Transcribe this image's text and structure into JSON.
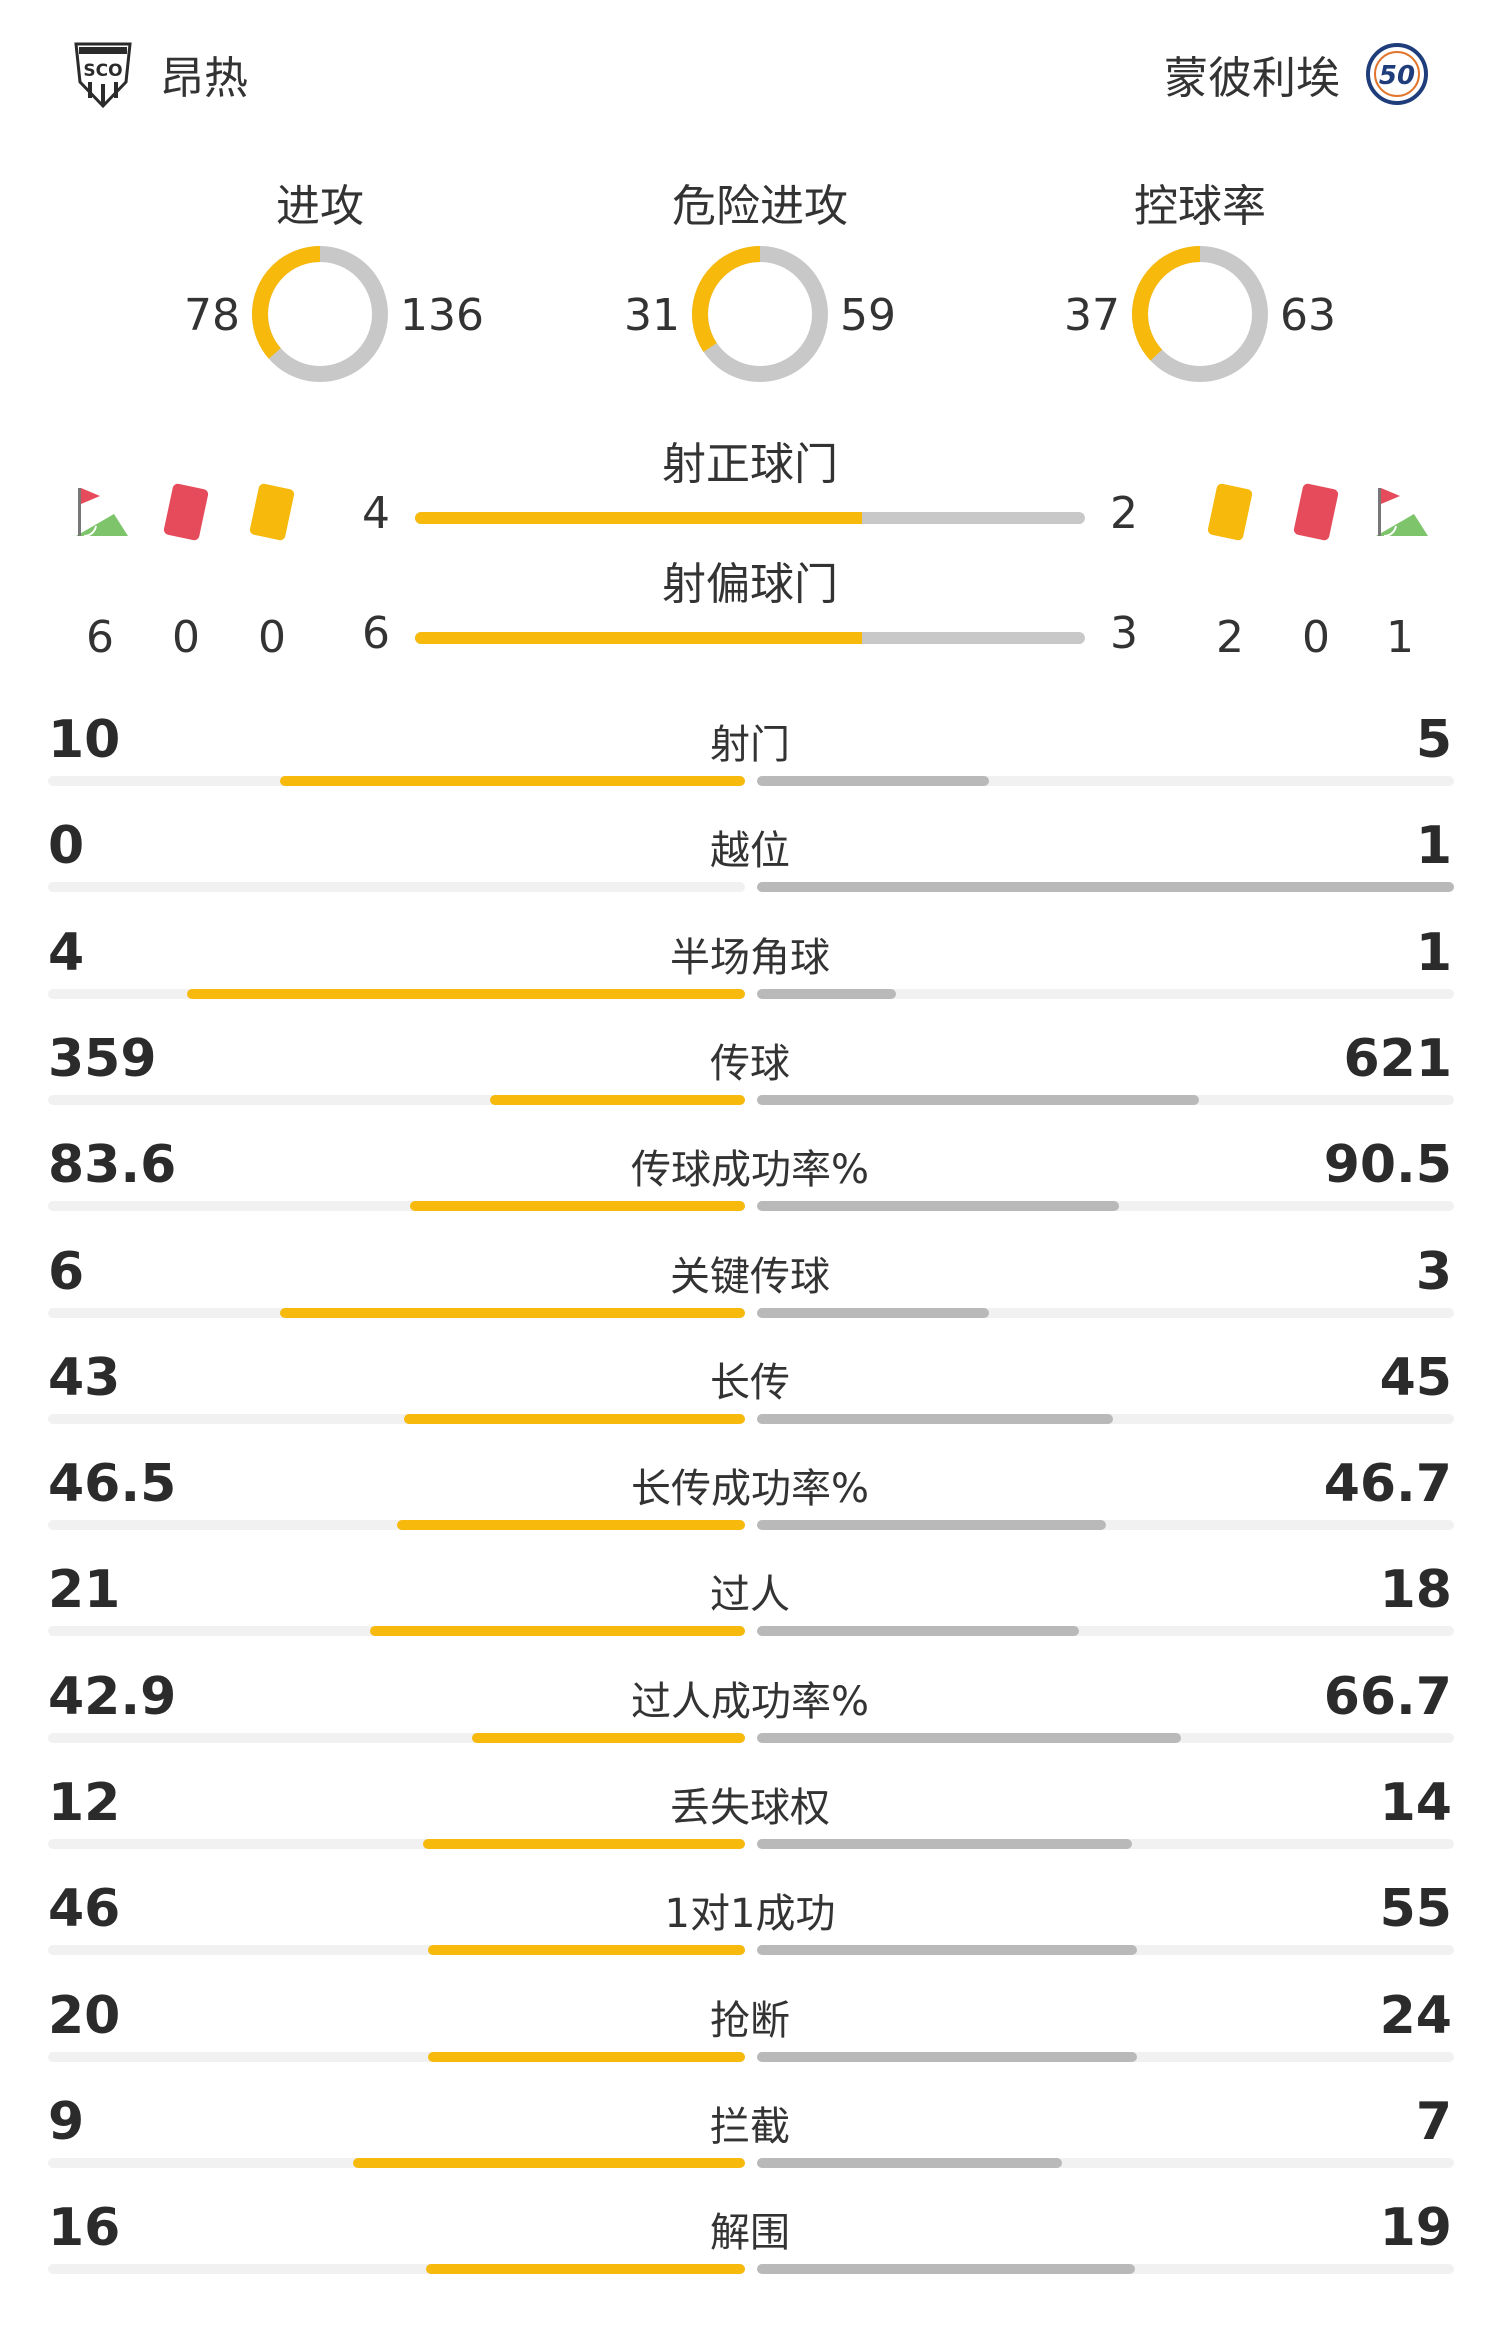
{
  "header": {
    "home_team": "昂热",
    "away_team": "蒙彼利埃",
    "home_logo_text": "SCO",
    "away_logo_text": "50"
  },
  "donuts": [
    {
      "label": "进攻",
      "home": "78",
      "away": "136",
      "home_share": 0.364
    },
    {
      "label": "危险进攻",
      "home": "31",
      "away": "59",
      "home_share": 0.344
    },
    {
      "label": "控球率",
      "home": "37",
      "away": "63",
      "home_share": 0.37
    }
  ],
  "shots_on": {
    "label": "射正球门",
    "home": "4",
    "away": "2",
    "home_share": 0.667
  },
  "shots_off": {
    "label": "射偏球门",
    "home": "6",
    "away": "3",
    "home_share": 0.667
  },
  "events": {
    "home": {
      "corners": "6",
      "red_cards": "0",
      "yellow_cards": "0"
    },
    "away": {
      "yellow_cards": "2",
      "red_cards": "0",
      "corners": "1"
    },
    "icons": {
      "corner": "corner-flag-icon",
      "red": "red-card-icon",
      "yellow": "yellow-card-icon"
    }
  },
  "stats": [
    {
      "label": "射门",
      "home": "10",
      "away": "5",
      "home_share": 0.667
    },
    {
      "label": "越位",
      "home": "0",
      "away": "1",
      "home_share": 0.0
    },
    {
      "label": "半场角球",
      "home": "4",
      "away": "1",
      "home_share": 0.8
    },
    {
      "label": "传球",
      "home": "359",
      "away": "621",
      "home_share": 0.366
    },
    {
      "label": "传球成功率%",
      "home": "83.6",
      "away": "90.5",
      "home_share": 0.48
    },
    {
      "label": "关键传球",
      "home": "6",
      "away": "3",
      "home_share": 0.667
    },
    {
      "label": "长传",
      "home": "43",
      "away": "45",
      "home_share": 0.489
    },
    {
      "label": "长传成功率%",
      "home": "46.5",
      "away": "46.7",
      "home_share": 0.499
    },
    {
      "label": "过人",
      "home": "21",
      "away": "18",
      "home_share": 0.538
    },
    {
      "label": "过人成功率%",
      "home": "42.9",
      "away": "66.7",
      "home_share": 0.391
    },
    {
      "label": "丢失球权",
      "home": "12",
      "away": "14",
      "home_share": 0.462
    },
    {
      "label": "1对1成功",
      "home": "46",
      "away": "55",
      "home_share": 0.455
    },
    {
      "label": "抢断",
      "home": "20",
      "away": "24",
      "home_share": 0.455
    },
    {
      "label": "拦截",
      "home": "9",
      "away": "7",
      "home_share": 0.563
    },
    {
      "label": "解围",
      "home": "16",
      "away": "19",
      "home_share": 0.457
    }
  ],
  "colors": {
    "home": "#f6b90c",
    "away": "#b9b9b9",
    "track": "#f1f1f1",
    "donut_track": "#c8c8c8"
  }
}
